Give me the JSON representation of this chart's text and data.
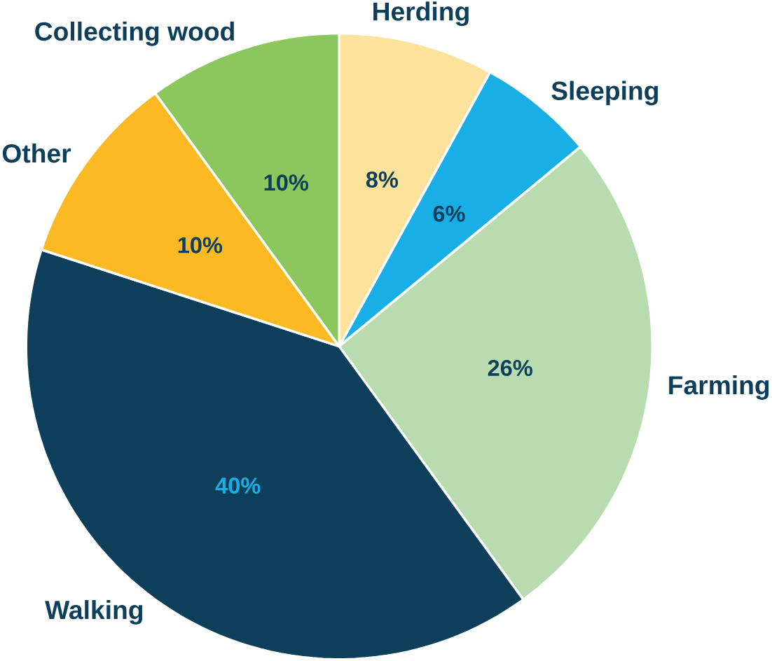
{
  "chart_data": {
    "type": "pie",
    "categories": [
      "Herding",
      "Sleeping",
      "Farming",
      "Walking",
      "Other",
      "Collecting wood"
    ],
    "values": [
      8,
      6,
      26,
      40,
      10,
      10
    ],
    "colors": [
      "#fce29a",
      "#1aaee6",
      "#b8dcb0",
      "#0d3f5a",
      "#fbb924",
      "#8cc65f"
    ],
    "value_labels": [
      "8%",
      "6%",
      "26%",
      "40%",
      "10%",
      "10%"
    ]
  }
}
